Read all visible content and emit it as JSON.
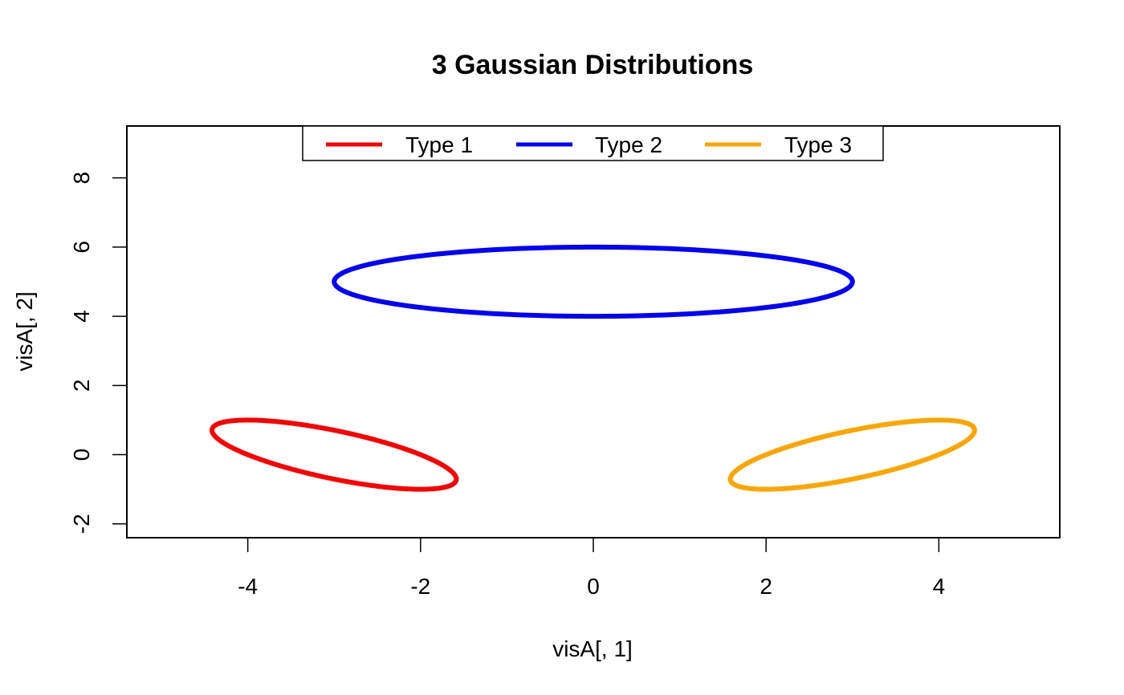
{
  "chart_data": {
    "type": "line",
    "title": "3 Gaussian Distributions",
    "xlabel": "visA[, 1]",
    "ylabel": "visA[, 2]",
    "xlim": [
      -5.4,
      5.4
    ],
    "ylim": [
      -2.4,
      9.5
    ],
    "xticks": [
      -4,
      -2,
      0,
      2,
      4
    ],
    "yticks": [
      -2,
      0,
      2,
      4,
      6,
      8
    ],
    "grid": false,
    "legend_position": "top-center",
    "series": [
      {
        "name": "Type 1",
        "color": "#ff0000",
        "shape": "ellipse",
        "center": [
          -3,
          0
        ],
        "covariance": [
          [
            2,
            -1
          ],
          [
            -1,
            1
          ]
        ]
      },
      {
        "name": "Type 2",
        "color": "#0000ff",
        "shape": "ellipse",
        "center": [
          0,
          5
        ],
        "covariance": [
          [
            9,
            0
          ],
          [
            0,
            1
          ]
        ]
      },
      {
        "name": "Type 3",
        "color": "#ffa500",
        "shape": "ellipse",
        "center": [
          3,
          0
        ],
        "covariance": [
          [
            2,
            1
          ],
          [
            1,
            1
          ]
        ]
      }
    ]
  }
}
